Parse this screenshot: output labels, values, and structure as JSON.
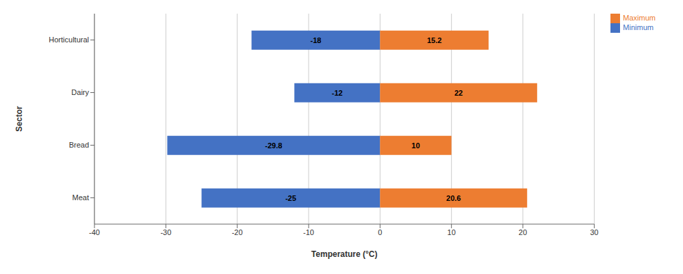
{
  "chart_data": {
    "type": "bar",
    "orientation": "horizontal",
    "categories": [
      "Meat",
      "Bread",
      "Dairy",
      "Horticultural"
    ],
    "series": [
      {
        "name": "Minimum",
        "color": "#4472C4",
        "values": [
          -25,
          -29.8,
          -12,
          -18
        ]
      },
      {
        "name": "Maximum",
        "color": "#ED7D31",
        "values": [
          20.6,
          10,
          22,
          15.2
        ]
      }
    ],
    "xlabel": "Temperature (°C)",
    "ylabel": "Sector",
    "xlim": [
      -40,
      30
    ],
    "xticks": [
      -40,
      -30,
      -20,
      -10,
      0,
      10,
      20,
      30
    ],
    "grid": true,
    "legend": "right",
    "data_labels": true
  }
}
